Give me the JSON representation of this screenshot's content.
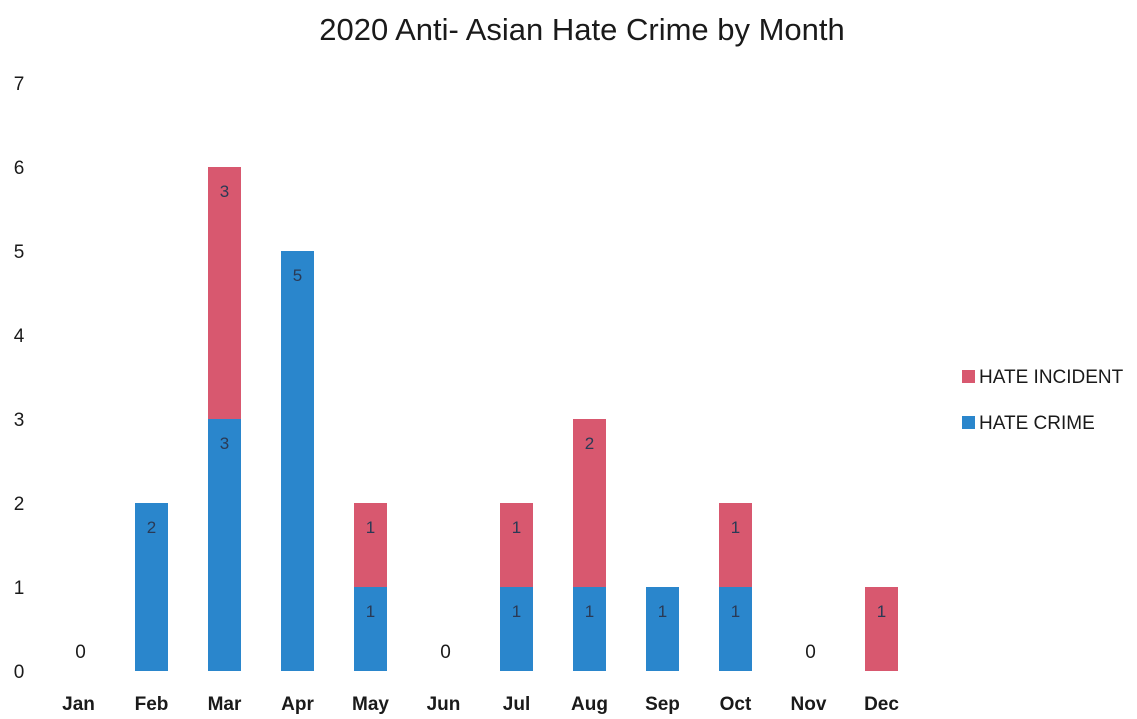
{
  "chart_data": {
    "type": "bar",
    "stacked": true,
    "title": "2020 Anti- Asian Hate Crime by Month",
    "xlabel": "",
    "ylabel": "",
    "ylim": [
      0,
      7
    ],
    "yticks": [
      "0",
      "1",
      "2",
      "3",
      "4",
      "5",
      "6",
      "7"
    ],
    "grid": false,
    "legend_position": "right",
    "categories": [
      "Jan",
      "Feb",
      "Mar",
      "Apr",
      "May",
      "Jun",
      "Jul",
      "Aug",
      "Sep",
      "Oct",
      "Nov",
      "Dec"
    ],
    "series": [
      {
        "name": "HATE CRIME",
        "color": "#2a86cc",
        "values": [
          0,
          2,
          3,
          5,
          1,
          0,
          1,
          1,
          1,
          1,
          0,
          0
        ]
      },
      {
        "name": "HATE INCIDENT",
        "color": "#d8586f",
        "values": [
          0,
          0,
          3,
          0,
          1,
          0,
          1,
          2,
          0,
          1,
          0,
          1
        ]
      }
    ],
    "legend_order": [
      "HATE INCIDENT",
      "HATE CRIME"
    ],
    "zero_labels": {
      "Jan": "0",
      "Jun": "0",
      "Nov": "0"
    }
  }
}
